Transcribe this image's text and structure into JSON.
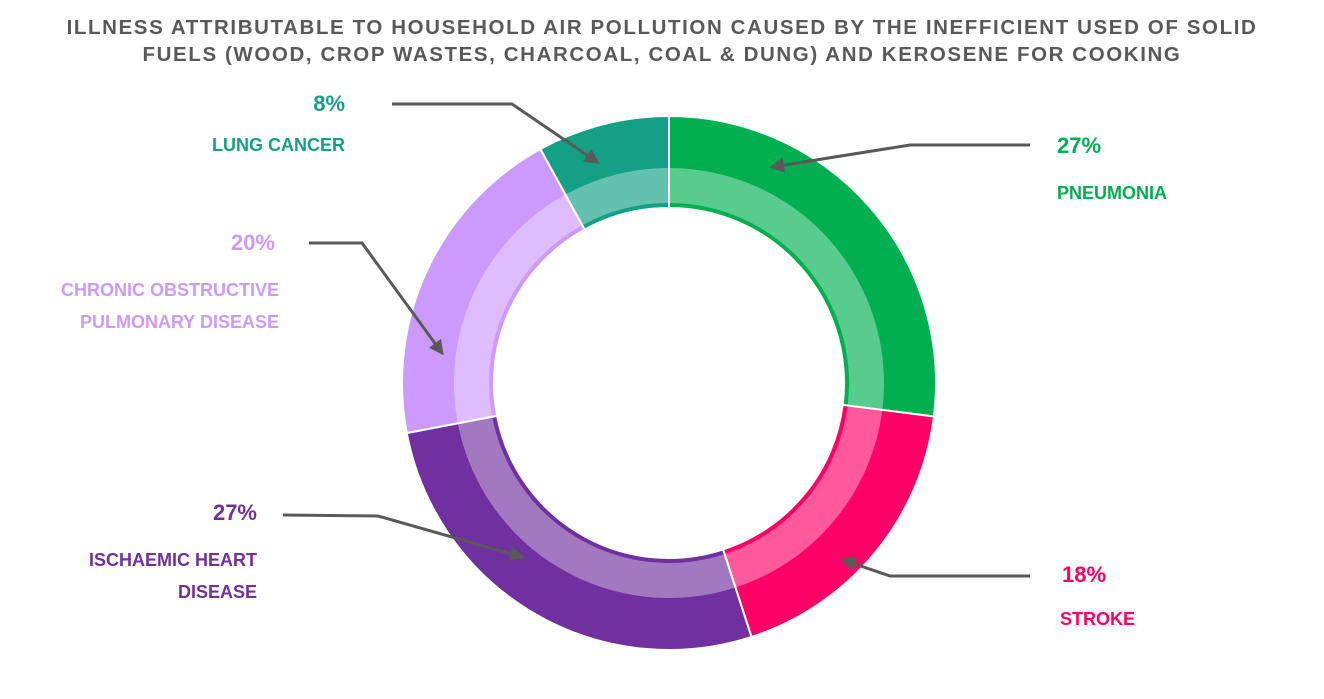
{
  "chart_data": {
    "type": "pie",
    "donut": true,
    "title": "ILLNESS ATTRIBUTABLE TO HOUSEHOLD AIR POLLUTION CAUSED BY THE INEFFICIENT USED OF SOLID FUELS (WOOD, CROP WASTES, CHARCOAL, COAL & DUNG) AND KEROSENE FOR COOKING",
    "categories": [
      "PNEUMONIA",
      "STROKE",
      "ISCHAEMIC HEART DISEASE",
      "CHRONIC OBSTRUCTIVE PULMONARY DISEASE",
      "LUNG CANCER"
    ],
    "values": [
      27,
      18,
      27,
      20,
      8
    ],
    "value_labels": [
      "27%",
      "18%",
      "27%",
      "20%",
      "8%"
    ],
    "colors": [
      "#00b050",
      "#ff0066",
      "#7030a0",
      "#cc99ff",
      "#13a085"
    ]
  }
}
